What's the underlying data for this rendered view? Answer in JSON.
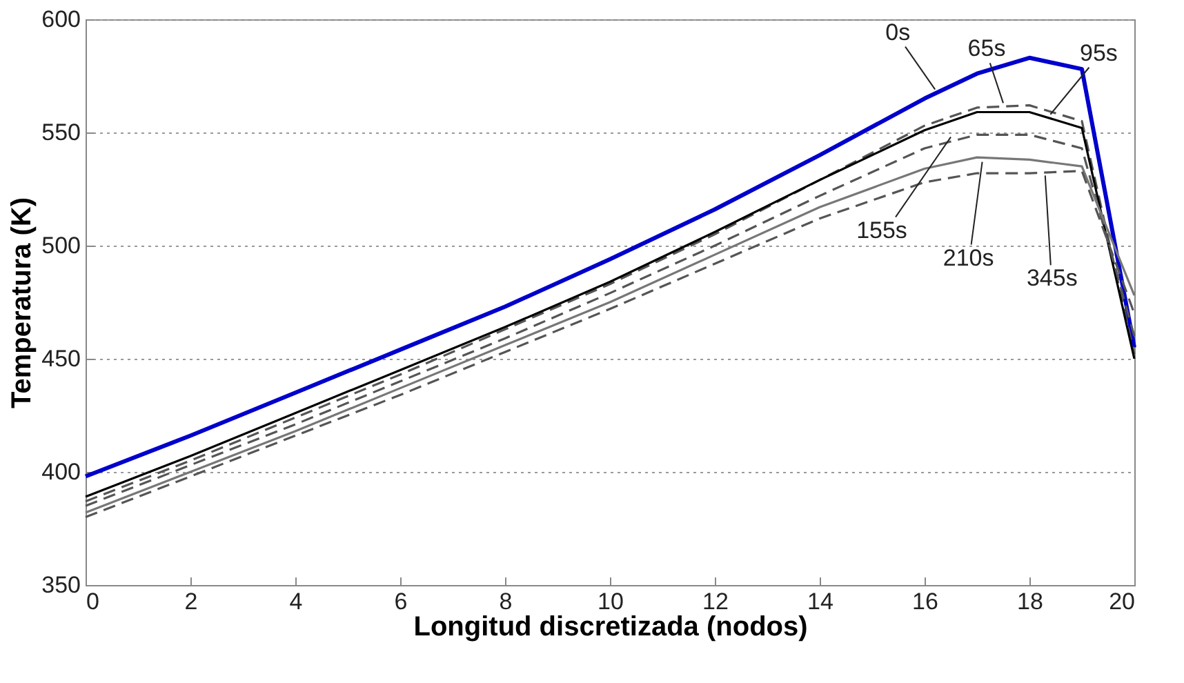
{
  "chart_data": {
    "type": "line",
    "xlabel": "Longitud discretizada (nodos)",
    "ylabel": "Temperatura (K)",
    "x": [
      0,
      2,
      4,
      6,
      8,
      10,
      12,
      14,
      16,
      17,
      18,
      19,
      20
    ],
    "series": [
      {
        "color": "#0000cc",
        "line_style": "solid",
        "values": [
          398,
          416,
          435,
          454,
          473,
          494,
          516,
          540,
          565,
          576,
          583,
          578,
          455
        ]
      },
      {
        "color": "#555555",
        "line_style": "dashed",
        "values": [
          387,
          405,
          424,
          443,
          463,
          483,
          505,
          529,
          553,
          561,
          562,
          555,
          452
        ]
      },
      {
        "color": "#000000",
        "line_style": "solid",
        "values": [
          389,
          407,
          426,
          445,
          464,
          484,
          506,
          529,
          551,
          559,
          559,
          552,
          450
        ]
      },
      {
        "color": "#555555",
        "line_style": "dashed",
        "values": [
          385,
          403,
          421,
          440,
          459,
          479,
          500,
          522,
          543,
          549,
          549,
          543,
          460
        ]
      },
      {
        "color": "#777777",
        "line_style": "solid",
        "values": [
          382,
          400,
          418,
          437,
          456,
          475,
          496,
          517,
          534,
          539,
          538,
          535,
          478
        ]
      },
      {
        "color": "#555555",
        "line_style": "dashed",
        "values": [
          380,
          398,
          416,
          434,
          453,
          472,
          492,
          512,
          528,
          532,
          532,
          533,
          470
        ]
      }
    ],
    "annotations": [
      {
        "text": "0s",
        "x": 16.2,
        "y": 569
      },
      {
        "text": "65s",
        "x": 17.5,
        "y": 563
      },
      {
        "text": "95s",
        "x": 18.4,
        "y": 558
      },
      {
        "text": "155s",
        "x": 16.5,
        "y": 548
      },
      {
        "text": "210s",
        "x": 17.1,
        "y": 537
      },
      {
        "text": "345s",
        "x": 18.3,
        "y": 531
      }
    ],
    "xlim": [
      0,
      20
    ],
    "ylim": [
      350,
      600
    ],
    "xticks": [
      0,
      2,
      4,
      6,
      8,
      10,
      12,
      14,
      16,
      18,
      20
    ],
    "yticks": [
      350,
      400,
      450,
      500,
      550,
      600
    ],
    "grid": "y"
  }
}
